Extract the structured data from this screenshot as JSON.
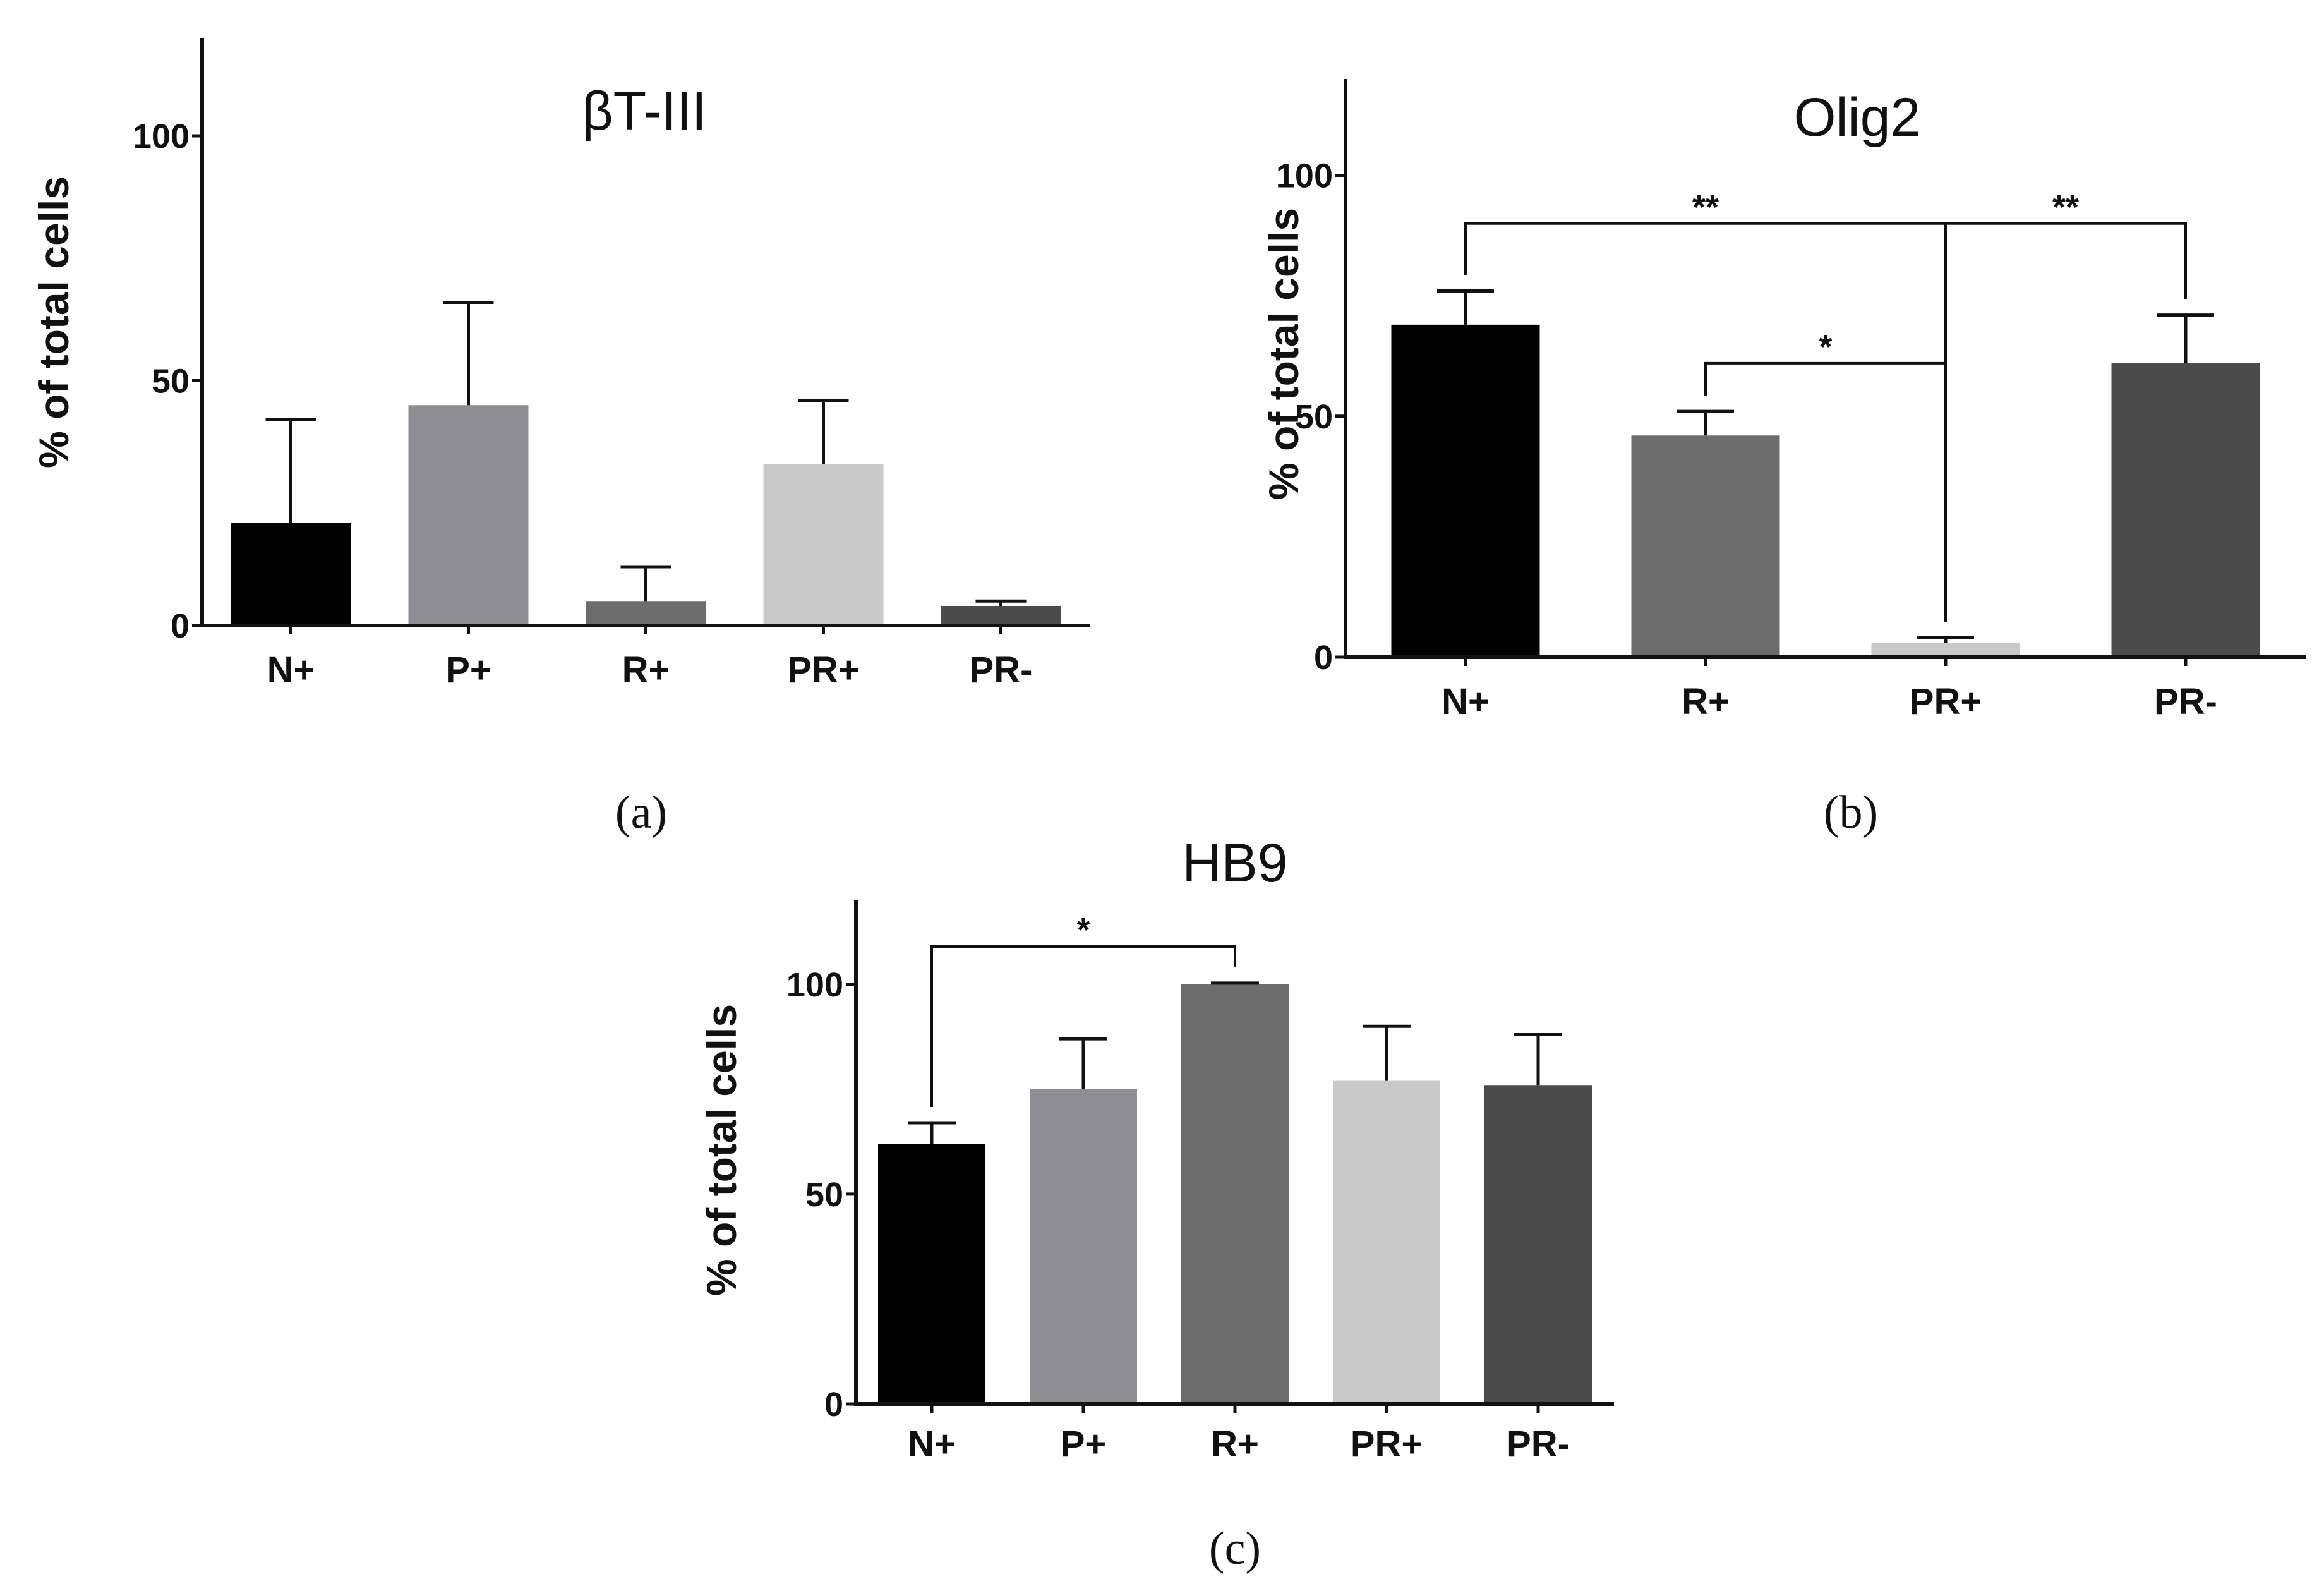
{
  "chart_data": [
    {
      "id": "a",
      "type": "bar",
      "title": "βT-III",
      "panel_label": "(a)",
      "ylabel": "% of total cells",
      "xlabel": "",
      "ylim": [
        0,
        120
      ],
      "yticks": [
        0,
        50,
        100
      ],
      "categories": [
        "N+",
        "P+",
        "R+",
        "PR+",
        "PR-"
      ],
      "values": [
        21,
        45,
        5,
        33,
        4
      ],
      "errors": [
        21,
        21,
        7,
        13,
        1
      ],
      "colors": [
        "#000000",
        "#8e8d92",
        "#6c6c6c",
        "#c9c9c9",
        "#4b4b4b"
      ],
      "brackets": []
    },
    {
      "id": "b",
      "type": "bar",
      "title": "Olig2",
      "panel_label": "(b)",
      "ylabel": "% of total cells",
      "xlabel": "",
      "ylim": [
        0,
        120
      ],
      "yticks": [
        0,
        50,
        100
      ],
      "categories": [
        "N+",
        "R+",
        "PR+",
        "PR-"
      ],
      "values": [
        69,
        46,
        3,
        61
      ],
      "errors": [
        7,
        5,
        1,
        10
      ],
      "colors": [
        "#000000",
        "#6c6c6c",
        "#c9c9c9",
        "#4b4b4b"
      ],
      "brackets": [
        {
          "from": 0,
          "to": 2,
          "y": 90,
          "label": "**"
        },
        {
          "from": 1,
          "to": 2,
          "y": 61,
          "label": "*"
        },
        {
          "from": 2,
          "to": 3,
          "y": 90,
          "label": "**"
        }
      ]
    },
    {
      "id": "c",
      "type": "bar",
      "title": "HB9",
      "panel_label": "(c)",
      "ylabel": "% of total cells",
      "xlabel": "",
      "ylim": [
        0,
        120
      ],
      "yticks": [
        0,
        50,
        100
      ],
      "categories": [
        "N+",
        "P+",
        "R+",
        "PR+",
        "PR-"
      ],
      "values": [
        62,
        75,
        100,
        77,
        76
      ],
      "errors": [
        5,
        12,
        0.3,
        13,
        12
      ],
      "colors": [
        "#000000",
        "#8e8d92",
        "#6c6c6c",
        "#c9c9c9",
        "#4b4b4b"
      ],
      "brackets": [
        {
          "from": 0,
          "to": 2,
          "y": 109,
          "label": "*"
        }
      ]
    }
  ]
}
